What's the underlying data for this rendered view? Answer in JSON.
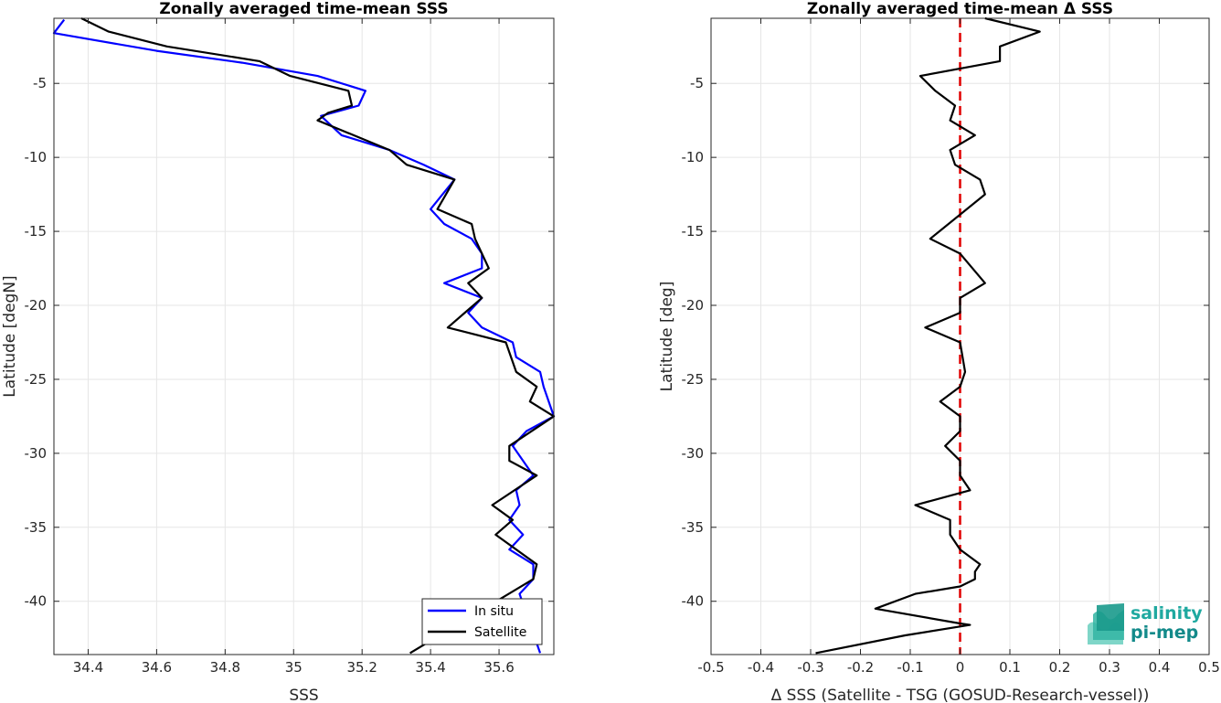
{
  "chart_data": [
    {
      "type": "line",
      "title": "Zonally averaged time-mean SSS",
      "xlabel": "SSS",
      "ylabel": "Latitude [degN]",
      "xlim": [
        34.3,
        35.76
      ],
      "ylim": [
        -43.6,
        -0.6
      ],
      "xticks": [
        34.4,
        34.6,
        34.8,
        35,
        35.2,
        35.4,
        35.6
      ],
      "xtick_labels": [
        "34.4",
        "34.6",
        "34.8",
        "35",
        "35.2",
        "35.4",
        "35.6"
      ],
      "yticks": [
        -5,
        -10,
        -15,
        -20,
        -25,
        -30,
        -35,
        -40
      ],
      "ytick_labels": [
        "-5",
        "-10",
        "-15",
        "-20",
        "-25",
        "-30",
        "-35",
        "-40"
      ],
      "grid": true,
      "legend_position": "bottom-right",
      "series": [
        {
          "name": "In situ",
          "color": "#0000ff",
          "x": [
            34.33,
            34.3,
            34.6,
            34.85,
            35.07,
            35.21,
            35.19,
            35.08,
            35.14,
            35.28,
            35.38,
            35.47,
            35.4,
            35.44,
            35.52,
            35.55,
            35.55,
            35.44,
            35.55,
            35.51,
            35.55,
            35.64,
            35.65,
            35.72,
            35.73,
            35.76,
            35.68,
            35.64,
            35.7,
            35.65,
            35.66,
            35.63,
            35.67,
            35.63,
            35.7,
            35.7,
            35.66,
            35.72
          ],
          "y": [
            -0.7,
            -1.6,
            -2.8,
            -3.6,
            -4.5,
            -5.5,
            -6.5,
            -7.2,
            -8.5,
            -9.5,
            -10.5,
            -11.5,
            -13.5,
            -14.5,
            -15.5,
            -16.5,
            -17.5,
            -18.5,
            -19.5,
            -20.5,
            -21.5,
            -22.5,
            -23.5,
            -24.5,
            -25.5,
            -27.5,
            -28.5,
            -29.5,
            -31.5,
            -32.5,
            -33.5,
            -34.5,
            -35.5,
            -36.5,
            -37.5,
            -38.5,
            -39.5,
            -43.5
          ]
        },
        {
          "name": "Satellite",
          "color": "#000000",
          "x": [
            34.38,
            34.46,
            34.63,
            34.9,
            34.99,
            35.16,
            35.17,
            35.1,
            35.07,
            35.28,
            35.33,
            35.47,
            35.42,
            35.52,
            35.53,
            35.57,
            35.51,
            35.55,
            35.45,
            35.62,
            35.65,
            35.71,
            35.69,
            35.76,
            35.63,
            35.63,
            35.71,
            35.58,
            35.64,
            35.59,
            35.71,
            35.7,
            35.34
          ],
          "y": [
            -0.6,
            -1.5,
            -2.5,
            -3.5,
            -4.5,
            -5.5,
            -6.5,
            -7.0,
            -7.5,
            -9.5,
            -10.5,
            -11.5,
            -13.5,
            -14.5,
            -15.5,
            -17.5,
            -18.5,
            -19.5,
            -21.5,
            -22.5,
            -24.5,
            -25.5,
            -26.5,
            -27.5,
            -29.5,
            -30.5,
            -31.5,
            -33.5,
            -34.5,
            -35.5,
            -37.5,
            -38.5,
            -43.5
          ]
        }
      ]
    },
    {
      "type": "line",
      "title": "Zonally averaged time-mean Δ SSS",
      "xlabel": "Δ SSS (Satellite - TSG (GOSUD-Research-vessel))",
      "ylabel": "Latitude [deg]",
      "xlim": [
        -0.5,
        0.5
      ],
      "ylim": [
        -43.6,
        -0.6
      ],
      "xticks": [
        -0.5,
        -0.4,
        -0.3,
        -0.2,
        -0.1,
        0,
        0.1,
        0.2,
        0.3,
        0.4,
        0.5
      ],
      "xtick_labels": [
        "-0.5",
        "-0.4",
        "-0.3",
        "-0.2",
        "-0.1",
        "0",
        "0.1",
        "0.2",
        "0.3",
        "0.4",
        "0.5"
      ],
      "yticks": [
        -5,
        -10,
        -15,
        -20,
        -25,
        -30,
        -35,
        -40
      ],
      "ytick_labels": [
        "-5",
        "-10",
        "-15",
        "-20",
        "-25",
        "-30",
        "-35",
        "-40"
      ],
      "grid": true,
      "reference_line": {
        "x": 0,
        "color": "#e00000",
        "style": "dashed"
      },
      "series": [
        {
          "color": "#000000",
          "x": [
            0.05,
            0.16,
            0.08,
            0.08,
            -0.08,
            -0.05,
            -0.01,
            -0.02,
            0.03,
            -0.02,
            -0.01,
            0.04,
            0.05,
            -0.06,
            0.0,
            0.05,
            0.0,
            0.0,
            -0.07,
            0.0,
            0.01,
            0.0,
            -0.04,
            0.0,
            0.0,
            -0.03,
            0.0,
            0.0,
            0.02,
            -0.09,
            -0.02,
            -0.02,
            0.0,
            0.04,
            0.03,
            0.03,
            0.0,
            -0.09,
            -0.17,
            0.0,
            0.02,
            -0.11,
            -0.29
          ],
          "y": [
            -0.6,
            -1.5,
            -2.5,
            -3.5,
            -4.5,
            -5.5,
            -6.5,
            -7.5,
            -8.5,
            -9.5,
            -10.5,
            -11.5,
            -12.5,
            -15.5,
            -16.5,
            -18.5,
            -19.5,
            -20.5,
            -21.5,
            -22.5,
            -24.5,
            -25.5,
            -26.5,
            -27.5,
            -28.5,
            -29.5,
            -30.5,
            -31.5,
            -32.5,
            -33.5,
            -34.5,
            -35.5,
            -36.5,
            -37.5,
            -38.0,
            -38.5,
            -39.0,
            -39.5,
            -40.5,
            -41.5,
            -41.6,
            -42.3,
            -43.5
          ]
        }
      ]
    }
  ],
  "logo": {
    "line1": "salinity",
    "line2": "pi-mep",
    "color1": "#1fa9a0",
    "color2": "#138a8a"
  }
}
